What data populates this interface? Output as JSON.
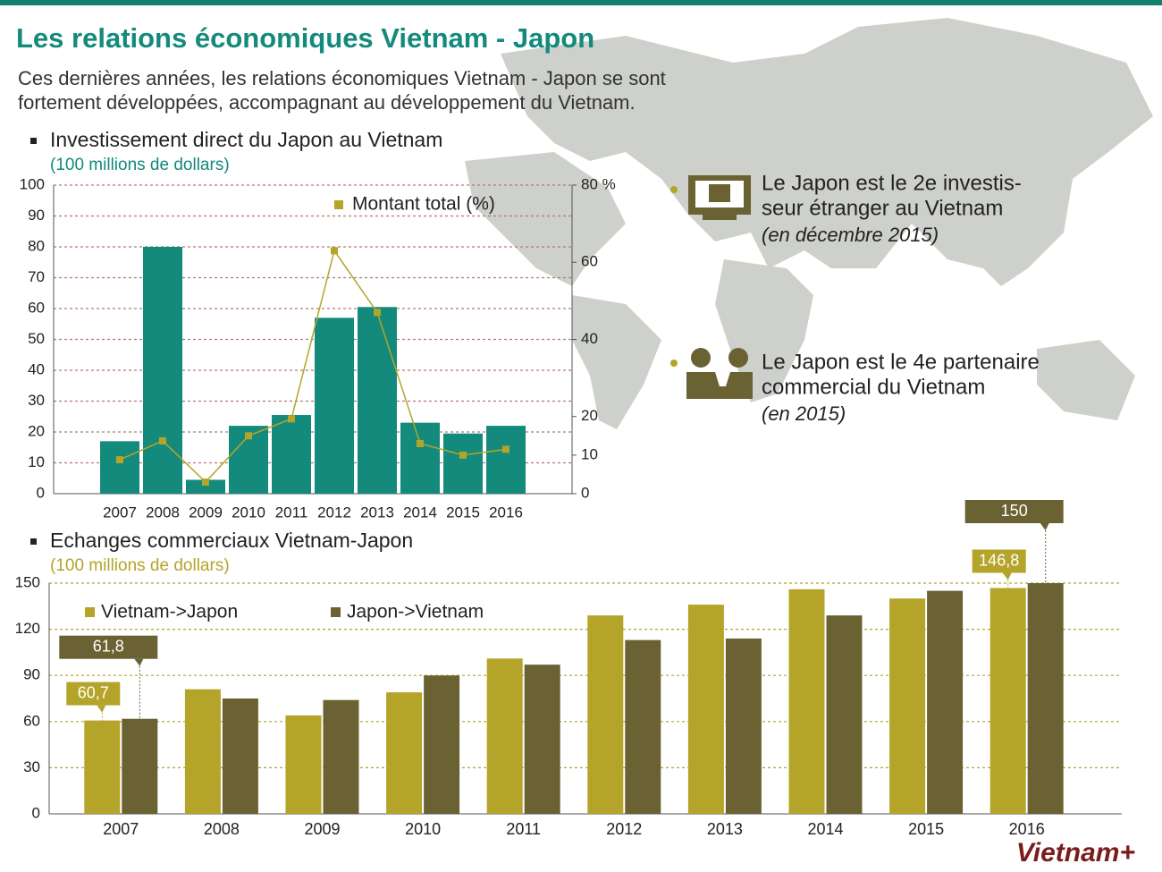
{
  "header": {
    "title": "Les relations économiques Vietnam - Japon",
    "subtitle": [
      "Ces dernières années, les relations économiques Vietnam - Japon se sont",
      "fortement développées, accompagnant au développement du Vietnam."
    ]
  },
  "chart_data": [
    {
      "type": "bar",
      "title": "Investissement direct du Japon au Vietnam",
      "unit": "(100 millions de dollars)",
      "categories": [
        "2007",
        "2008",
        "2009",
        "2010",
        "2011",
        "2012",
        "2013",
        "2014",
        "2015",
        "2016"
      ],
      "values": [
        17,
        80,
        4.5,
        22,
        25.5,
        57,
        60.5,
        23,
        19.5,
        22
      ],
      "color": "#138a7c",
      "series": [
        {
          "name": "Montant total (%)",
          "type": "line",
          "axis": "y2",
          "color": "#b5a42a",
          "values": [
            8.8,
            13.7,
            3,
            15,
            19.4,
            63,
            47,
            13,
            10,
            11.5
          ]
        }
      ],
      "ylim": [
        0,
        100
      ],
      "yticks": [
        0,
        10,
        20,
        30,
        40,
        50,
        60,
        70,
        80,
        90,
        100
      ],
      "y2lim": [
        0,
        80
      ],
      "y2ticks": [
        0,
        10,
        20,
        40,
        60,
        {
          "value": 80,
          "label": "80 %"
        }
      ],
      "grid": true,
      "legend": "top"
    },
    {
      "type": "grouped-bar",
      "title": "Echanges commerciaux Vietnam-Japon",
      "unit": "(100 millions de dollars)",
      "categories": [
        "2007",
        "2008",
        "2009",
        "2010",
        "2011",
        "2012",
        "2013",
        "2014",
        "2015",
        "2016"
      ],
      "series": [
        {
          "name": "Vietnam->Japon",
          "color": "#b5a42a",
          "values": [
            60.7,
            81,
            64,
            79,
            101,
            129,
            136,
            146,
            140,
            146.8
          ],
          "value_labels": [
            "60,7",
            null,
            null,
            null,
            null,
            null,
            null,
            null,
            null,
            "146,8"
          ]
        },
        {
          "name": "Japon->Vietnam",
          "color": "#6b6233",
          "values": [
            61.8,
            75,
            74,
            90,
            97,
            113,
            114,
            129,
            145,
            150
          ],
          "value_labels": [
            "61,8",
            null,
            null,
            null,
            null,
            null,
            null,
            null,
            null,
            "150"
          ]
        }
      ],
      "ylim": [
        0,
        150
      ],
      "yticks": [
        0,
        30,
        60,
        90,
        120,
        150
      ],
      "grid": true,
      "legend": "top-left"
    }
  ],
  "facts": [
    {
      "lines": [
        "Le Japon est le 2e investis-",
        "seur étranger au Vietnam"
      ],
      "note": "(en décembre 2015)"
    },
    {
      "lines": [
        "Le Japon est le 4e partenaire",
        "commercial du Vietnam"
      ],
      "note": "(en 2015)"
    }
  ],
  "logo": "Vietnam+"
}
